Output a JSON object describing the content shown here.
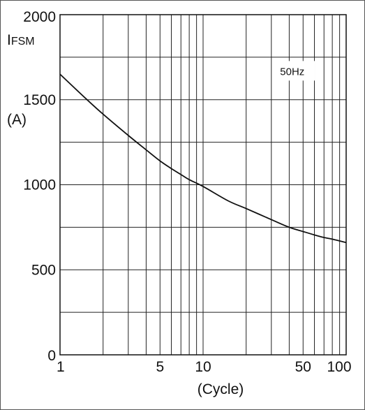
{
  "chart_data": {
    "type": "line",
    "title": "",
    "ylabel_main": "I",
    "ylabel_sub": "FSM",
    "yunit": "(A)",
    "xlabel": "(Cycle)",
    "annotation": "50Hz",
    "x_scale": "log",
    "xlim": [
      1,
      100
    ],
    "ylim": [
      0,
      2000
    ],
    "grid": true,
    "x_tick_labels": [
      {
        "value": 1,
        "label": "1"
      },
      {
        "value": 5,
        "label": "5"
      },
      {
        "value": 10,
        "label": "10"
      },
      {
        "value": 50,
        "label": "50"
      },
      {
        "value": 100,
        "label": "100"
      }
    ],
    "y_tick_labels": [
      {
        "value": 0,
        "label": "0"
      },
      {
        "value": 500,
        "label": "500"
      },
      {
        "value": 1000,
        "label": "1000"
      },
      {
        "value": 1500,
        "label": "1500"
      },
      {
        "value": 2000,
        "label": "2000"
      }
    ],
    "series": [
      {
        "x": [
          1,
          1.5,
          2,
          3,
          4,
          5,
          6,
          7,
          8,
          10,
          15,
          20,
          30,
          40,
          50,
          60,
          70,
          80,
          100
        ],
        "y": [
          1650,
          1510,
          1415,
          1290,
          1205,
          1140,
          1095,
          1060,
          1030,
          990,
          905,
          860,
          795,
          750,
          725,
          705,
          690,
          680,
          660
        ]
      }
    ]
  }
}
